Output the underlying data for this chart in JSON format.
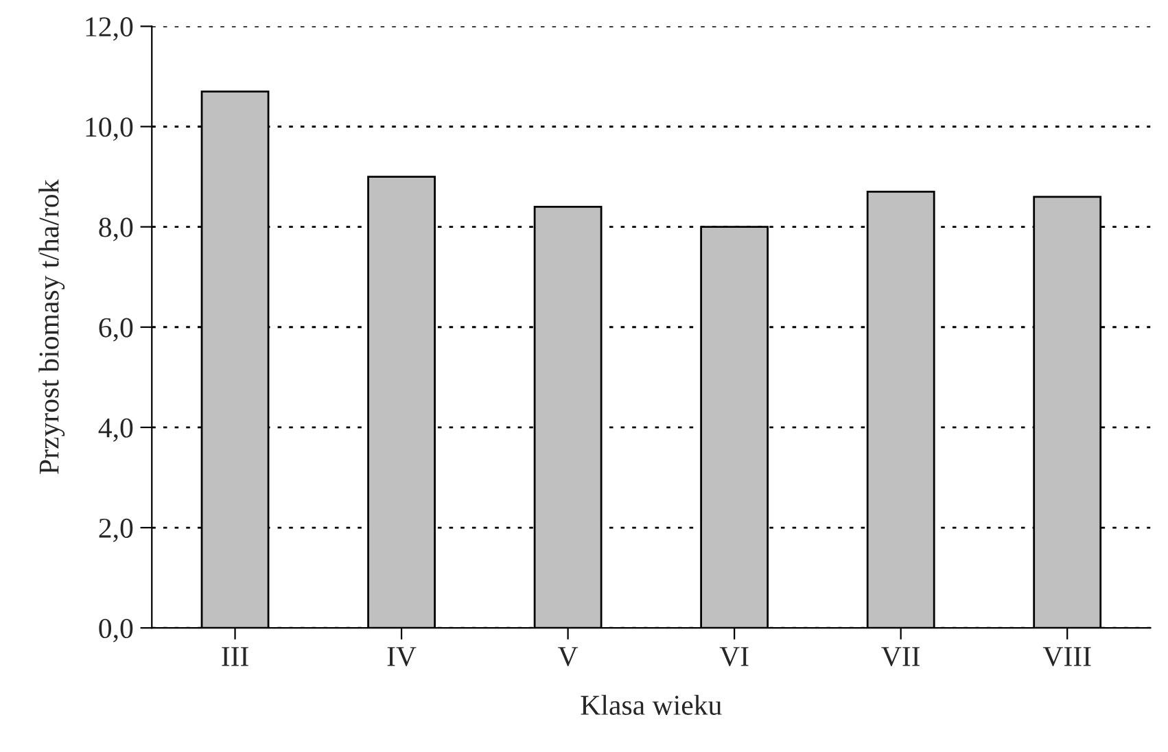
{
  "chart_data": {
    "type": "bar",
    "xlabel": "Klasa wieku",
    "ylabel": "Przyrost biomasy t/ha/rok",
    "categories": [
      "III",
      "IV",
      "V",
      "VI",
      "VII",
      "VIII"
    ],
    "values": [
      10.7,
      9.0,
      8.4,
      8.0,
      8.7,
      8.6
    ],
    "color": "#c0c0c0",
    "ylim": [
      0,
      12
    ],
    "yticks": [
      {
        "value": 0,
        "label": "0,0"
      },
      {
        "value": 2,
        "label": "2,0"
      },
      {
        "value": 4,
        "label": "4,0"
      },
      {
        "value": 6,
        "label": "6,0"
      },
      {
        "value": 8,
        "label": "8,0"
      },
      {
        "value": 10,
        "label": "10,0"
      },
      {
        "value": 12,
        "label": "12,0"
      }
    ],
    "grid": "y",
    "legend": false
  }
}
